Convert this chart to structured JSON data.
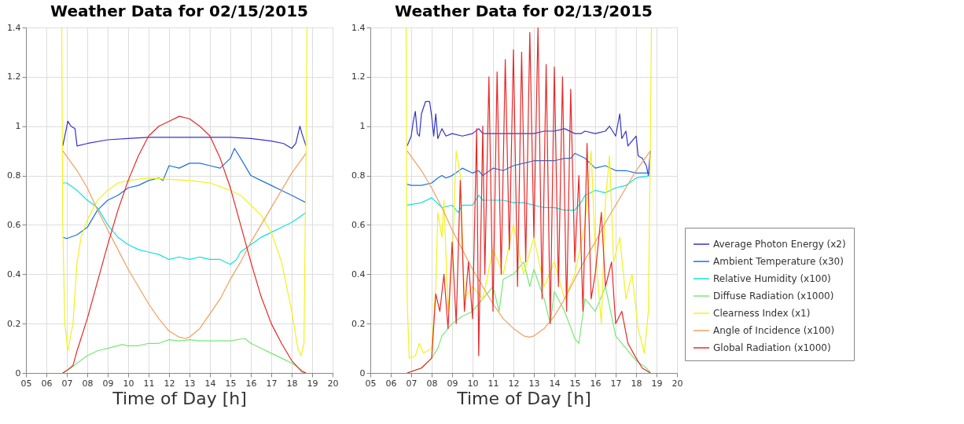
{
  "chart_data": [
    {
      "type": "line",
      "title": "Weather Data for 02/15/2015",
      "xlabel": "Time of Day [h]",
      "xlim": [
        5,
        20
      ],
      "xticks": [
        {
          "value": 5,
          "label": "05"
        },
        {
          "value": 6,
          "label": "06"
        },
        {
          "value": 7,
          "label": "07"
        },
        {
          "value": 8,
          "label": "08"
        },
        {
          "value": 9,
          "label": "09"
        },
        10,
        11,
        12,
        13,
        14,
        15,
        16,
        17,
        18,
        19,
        20
      ],
      "ylim": [
        0,
        1.4
      ],
      "yticks": [
        0,
        0.2,
        0.4,
        0.6,
        0.8,
        1,
        1.2,
        1.4
      ],
      "grid": true,
      "legend": false,
      "series": [
        {
          "color": "#3333cc",
          "x": [
            6.8,
            6.9,
            7.05,
            7.2,
            7.4,
            7.5,
            8,
            9,
            10,
            11,
            12,
            13,
            14,
            15,
            16,
            17,
            17.6,
            18,
            18.2,
            18.4,
            18.5,
            18.7
          ],
          "values": [
            0.92,
            0.96,
            1.02,
            1.0,
            0.99,
            0.92,
            0.93,
            0.945,
            0.95,
            0.955,
            0.955,
            0.955,
            0.955,
            0.955,
            0.95,
            0.94,
            0.93,
            0.91,
            0.93,
            1.0,
            0.97,
            0.92
          ]
        },
        {
          "color": "#1f6fdb",
          "x": [
            6.8,
            7,
            7.5,
            8,
            8.5,
            9,
            9.5,
            10,
            10.5,
            11,
            11.5,
            11.7,
            12,
            12.5,
            13,
            13.5,
            14,
            14.5,
            15,
            15.2,
            15.5,
            16,
            16.5,
            17,
            17.5,
            18,
            18.7
          ],
          "values": [
            0.55,
            0.545,
            0.56,
            0.59,
            0.66,
            0.7,
            0.72,
            0.75,
            0.76,
            0.78,
            0.79,
            0.78,
            0.84,
            0.83,
            0.85,
            0.85,
            0.84,
            0.83,
            0.87,
            0.91,
            0.87,
            0.8,
            0.78,
            0.76,
            0.74,
            0.72,
            0.69
          ]
        },
        {
          "color": "#11e0e0",
          "x": [
            6.8,
            7,
            7.5,
            8,
            8.5,
            9,
            9.5,
            10,
            10.5,
            11,
            11.5,
            12,
            12.5,
            13,
            13.5,
            14,
            14.5,
            15,
            15.3,
            15.5,
            16,
            16.5,
            17,
            17.5,
            18,
            18.7
          ],
          "values": [
            0.77,
            0.77,
            0.74,
            0.7,
            0.67,
            0.6,
            0.55,
            0.52,
            0.5,
            0.49,
            0.48,
            0.46,
            0.47,
            0.46,
            0.47,
            0.46,
            0.46,
            0.44,
            0.46,
            0.49,
            0.52,
            0.55,
            0.57,
            0.59,
            0.61,
            0.65
          ]
        },
        {
          "color": "#77e877",
          "x": [
            6.8,
            7.2,
            7.5,
            8,
            8.5,
            9,
            9.7,
            10,
            10.5,
            11,
            11.5,
            12,
            12.5,
            13,
            13.5,
            14,
            15,
            15.7,
            16,
            16.5,
            17,
            17.5,
            18,
            18.5,
            18.7
          ],
          "values": [
            0,
            0.02,
            0.04,
            0.07,
            0.09,
            0.1,
            0.115,
            0.11,
            0.11,
            0.12,
            0.12,
            0.135,
            0.13,
            0.135,
            0.13,
            0.13,
            0.13,
            0.14,
            0.12,
            0.1,
            0.08,
            0.06,
            0.04,
            0.01,
            0
          ]
        },
        {
          "color": "#f2f21a",
          "x": [
            6.75,
            6.8,
            6.9,
            7.05,
            7.3,
            7.5,
            7.7,
            8,
            8.5,
            9,
            9.5,
            10,
            11,
            12,
            13,
            14,
            15,
            15.5,
            16,
            16.5,
            17,
            17.5,
            18,
            18.3,
            18.45,
            18.6,
            18.7,
            18.75
          ],
          "values": [
            1.4,
            0.6,
            0.2,
            0.09,
            0.2,
            0.45,
            0.55,
            0.62,
            0.7,
            0.74,
            0.77,
            0.78,
            0.79,
            0.785,
            0.78,
            0.77,
            0.74,
            0.72,
            0.68,
            0.64,
            0.57,
            0.45,
            0.25,
            0.1,
            0.07,
            0.12,
            0.9,
            1.4
          ]
        },
        {
          "color": "#f0a060",
          "x": [
            6.8,
            7.5,
            8,
            8.5,
            9,
            9.5,
            10,
            10.5,
            11,
            11.5,
            12,
            12.5,
            12.8,
            13,
            13.5,
            14,
            14.5,
            15,
            15.5,
            16,
            16.5,
            17,
            17.5,
            18,
            18.7
          ],
          "values": [
            0.9,
            0.82,
            0.75,
            0.66,
            0.58,
            0.5,
            0.42,
            0.35,
            0.28,
            0.22,
            0.17,
            0.145,
            0.14,
            0.145,
            0.18,
            0.24,
            0.3,
            0.38,
            0.45,
            0.53,
            0.6,
            0.67,
            0.74,
            0.81,
            0.89
          ]
        },
        {
          "color": "#e82828",
          "x": [
            6.8,
            7,
            7.3,
            7.5,
            8,
            8.5,
            9,
            9.5,
            10,
            10.5,
            11,
            11.5,
            12,
            12.5,
            13,
            13.5,
            14,
            14.5,
            15,
            15.5,
            16,
            16.5,
            17,
            17.5,
            18,
            18.5,
            18.7
          ],
          "values": [
            0,
            0.01,
            0.03,
            0.09,
            0.22,
            0.37,
            0.52,
            0.66,
            0.78,
            0.88,
            0.96,
            1.0,
            1.02,
            1.04,
            1.03,
            1.0,
            0.96,
            0.87,
            0.75,
            0.6,
            0.45,
            0.31,
            0.2,
            0.12,
            0.05,
            0.005,
            0
          ]
        }
      ]
    },
    {
      "type": "line",
      "title": "Weather Data for 02/13/2015",
      "xlabel": "Time of Day [h]",
      "xlim": [
        5,
        20
      ],
      "xticks": [
        {
          "value": 5,
          "label": "05"
        },
        {
          "value": 6,
          "label": "06"
        },
        {
          "value": 7,
          "label": "07"
        },
        {
          "value": 8,
          "label": "08"
        },
        {
          "value": 9,
          "label": "09"
        },
        10,
        11,
        12,
        13,
        14,
        15,
        16,
        17,
        18,
        19,
        20
      ],
      "ylim": [
        0,
        1.4
      ],
      "yticks": [
        0,
        0.2,
        0.4,
        0.6,
        0.8,
        1,
        1.2,
        1.4
      ],
      "grid": true,
      "legend": "bottom right",
      "series": [
        {
          "name": "Average Photon Energy (x2)",
          "color": "#3333cc",
          "x": [
            6.8,
            7,
            7.1,
            7.2,
            7.3,
            7.4,
            7.5,
            7.7,
            7.9,
            8,
            8.1,
            8.2,
            8.3,
            8.5,
            8.7,
            9,
            9.5,
            10,
            10.3,
            10.5,
            11,
            12,
            12.5,
            13,
            13.5,
            14,
            14.5,
            15,
            15.3,
            15.5,
            16,
            16.5,
            16.7,
            17,
            17.2,
            17.3,
            17.5,
            17.6,
            17.8,
            18,
            18.1,
            18.3,
            18.5,
            18.6,
            18.7
          ],
          "values": [
            0.92,
            0.96,
            1.02,
            1.06,
            0.97,
            0.96,
            1.05,
            1.1,
            1.1,
            1.04,
            0.96,
            1.05,
            0.95,
            0.99,
            0.96,
            0.97,
            0.96,
            0.97,
            0.99,
            0.97,
            0.97,
            0.97,
            0.97,
            0.97,
            0.98,
            0.98,
            0.99,
            0.97,
            0.97,
            0.98,
            0.97,
            0.98,
            1.0,
            0.96,
            1.05,
            0.95,
            0.98,
            0.92,
            0.94,
            0.96,
            0.88,
            0.87,
            0.84,
            0.8,
            0.9
          ]
        },
        {
          "name": "Ambient Temperature (x30)",
          "color": "#1f6fdb",
          "x": [
            6.8,
            7,
            7.5,
            8,
            8.3,
            8.5,
            8.7,
            9,
            9.5,
            10,
            10.3,
            10.5,
            11,
            11.5,
            12,
            12.5,
            13,
            13.5,
            14,
            14.5,
            14.8,
            15,
            15.5,
            16,
            16.5,
            17,
            17.5,
            18,
            18.7
          ],
          "values": [
            0.765,
            0.76,
            0.76,
            0.77,
            0.79,
            0.8,
            0.79,
            0.8,
            0.83,
            0.81,
            0.82,
            0.8,
            0.83,
            0.82,
            0.84,
            0.85,
            0.86,
            0.86,
            0.86,
            0.87,
            0.87,
            0.89,
            0.87,
            0.83,
            0.84,
            0.82,
            0.82,
            0.81,
            0.81
          ]
        },
        {
          "name": "Relative Humidity (x100)",
          "color": "#11e0e0",
          "x": [
            6.8,
            7.5,
            8,
            8.5,
            9,
            9.3,
            9.5,
            10,
            10.3,
            10.5,
            11,
            11.5,
            12,
            12.5,
            13,
            13.5,
            14,
            14.5,
            15,
            15.3,
            15.5,
            16,
            16.5,
            17,
            17.5,
            18,
            18.7
          ],
          "values": [
            0.68,
            0.69,
            0.71,
            0.67,
            0.68,
            0.65,
            0.68,
            0.68,
            0.72,
            0.7,
            0.7,
            0.7,
            0.69,
            0.69,
            0.68,
            0.67,
            0.67,
            0.66,
            0.66,
            0.69,
            0.72,
            0.74,
            0.73,
            0.75,
            0.76,
            0.79,
            0.8
          ]
        },
        {
          "name": "Diffuse Radiation (x1000)",
          "color": "#77e877",
          "x": [
            6.8,
            7.5,
            8,
            8.3,
            8.5,
            9,
            9.5,
            10,
            10.5,
            11,
            11.3,
            11.5,
            12,
            12.5,
            12.8,
            13,
            13.5,
            13.8,
            14,
            14.5,
            15,
            15.2,
            15.5,
            16,
            16.5,
            17,
            17.5,
            18,
            18.5,
            18.7
          ],
          "values": [
            0,
            0.02,
            0.06,
            0.1,
            0.15,
            0.2,
            0.23,
            0.25,
            0.3,
            0.35,
            0.25,
            0.38,
            0.4,
            0.45,
            0.35,
            0.42,
            0.3,
            0.2,
            0.33,
            0.25,
            0.14,
            0.12,
            0.3,
            0.25,
            0.35,
            0.15,
            0.1,
            0.05,
            0.02,
            0
          ]
        },
        {
          "name": "Clearness Index (x1)",
          "color": "#f2f21a",
          "x": [
            6.75,
            6.8,
            6.9,
            7.2,
            7.4,
            7.6,
            8,
            8.2,
            8.3,
            8.5,
            8.6,
            8.8,
            9,
            9.2,
            9.4,
            9.6,
            10,
            10.5,
            11,
            11.5,
            12,
            12.5,
            13,
            13.5,
            14,
            14.5,
            15,
            15.5,
            15.8,
            16,
            16.3,
            16.5,
            16.7,
            16.9,
            17.2,
            17.5,
            17.8,
            18.1,
            18.4,
            18.6,
            18.7,
            18.75
          ],
          "values": [
            1.4,
            0.3,
            0.06,
            0.07,
            0.12,
            0.08,
            0.1,
            0.35,
            0.65,
            0.55,
            0.7,
            0.25,
            0.45,
            0.9,
            0.8,
            0.3,
            0.35,
            0.3,
            0.5,
            0.4,
            0.6,
            0.4,
            0.55,
            0.35,
            0.45,
            0.3,
            0.4,
            0.6,
            0.9,
            0.5,
            0.2,
            0.7,
            0.88,
            0.45,
            0.55,
            0.3,
            0.4,
            0.18,
            0.08,
            0.25,
            0.95,
            1.4
          ]
        },
        {
          "name": "Angle of Incidence (x100)",
          "color": "#f0a060",
          "x": [
            6.8,
            7.5,
            8,
            8.5,
            9,
            9.5,
            10,
            10.5,
            11,
            11.5,
            12,
            12.5,
            12.8,
            13,
            13.5,
            14,
            14.5,
            15,
            15.5,
            16,
            16.5,
            17,
            17.5,
            18,
            18.7
          ],
          "values": [
            0.9,
            0.82,
            0.75,
            0.67,
            0.58,
            0.5,
            0.42,
            0.35,
            0.28,
            0.22,
            0.18,
            0.15,
            0.145,
            0.15,
            0.18,
            0.23,
            0.3,
            0.38,
            0.46,
            0.53,
            0.61,
            0.68,
            0.75,
            0.82,
            0.9
          ]
        },
        {
          "name": "Global Radiation (x1000)",
          "color": "#e82828",
          "x": [
            6.8,
            7.5,
            8,
            8.2,
            8.4,
            8.6,
            8.8,
            9,
            9.2,
            9.4,
            9.6,
            9.8,
            10,
            10.2,
            10.3,
            10.5,
            10.6,
            10.8,
            11,
            11.2,
            11.4,
            11.6,
            11.8,
            12,
            12.2,
            12.4,
            12.6,
            12.8,
            13,
            13.2,
            13.4,
            13.6,
            13.8,
            14,
            14.2,
            14.4,
            14.6,
            14.8,
            15,
            15.2,
            15.4,
            15.6,
            15.8,
            16,
            16.3,
            16.5,
            16.8,
            17,
            17.3,
            17.6,
            18,
            18.3,
            18.7
          ],
          "values": [
            0,
            0.02,
            0.06,
            0.32,
            0.25,
            0.4,
            0.18,
            0.53,
            0.2,
            0.78,
            0.25,
            0.45,
            0.22,
            0.99,
            0.07,
            1.0,
            0.4,
            1.2,
            0.25,
            1.22,
            0.4,
            1.27,
            0.5,
            1.31,
            0.35,
            1.3,
            0.45,
            1.38,
            0.55,
            1.4,
            0.3,
            1.25,
            0.2,
            1.24,
            0.35,
            1.2,
            0.25,
            1.15,
            0.45,
            0.8,
            0.25,
            0.93,
            0.3,
            0.4,
            0.65,
            0.35,
            0.45,
            0.2,
            0.25,
            0.12,
            0.06,
            0.02,
            0
          ]
        }
      ]
    }
  ]
}
